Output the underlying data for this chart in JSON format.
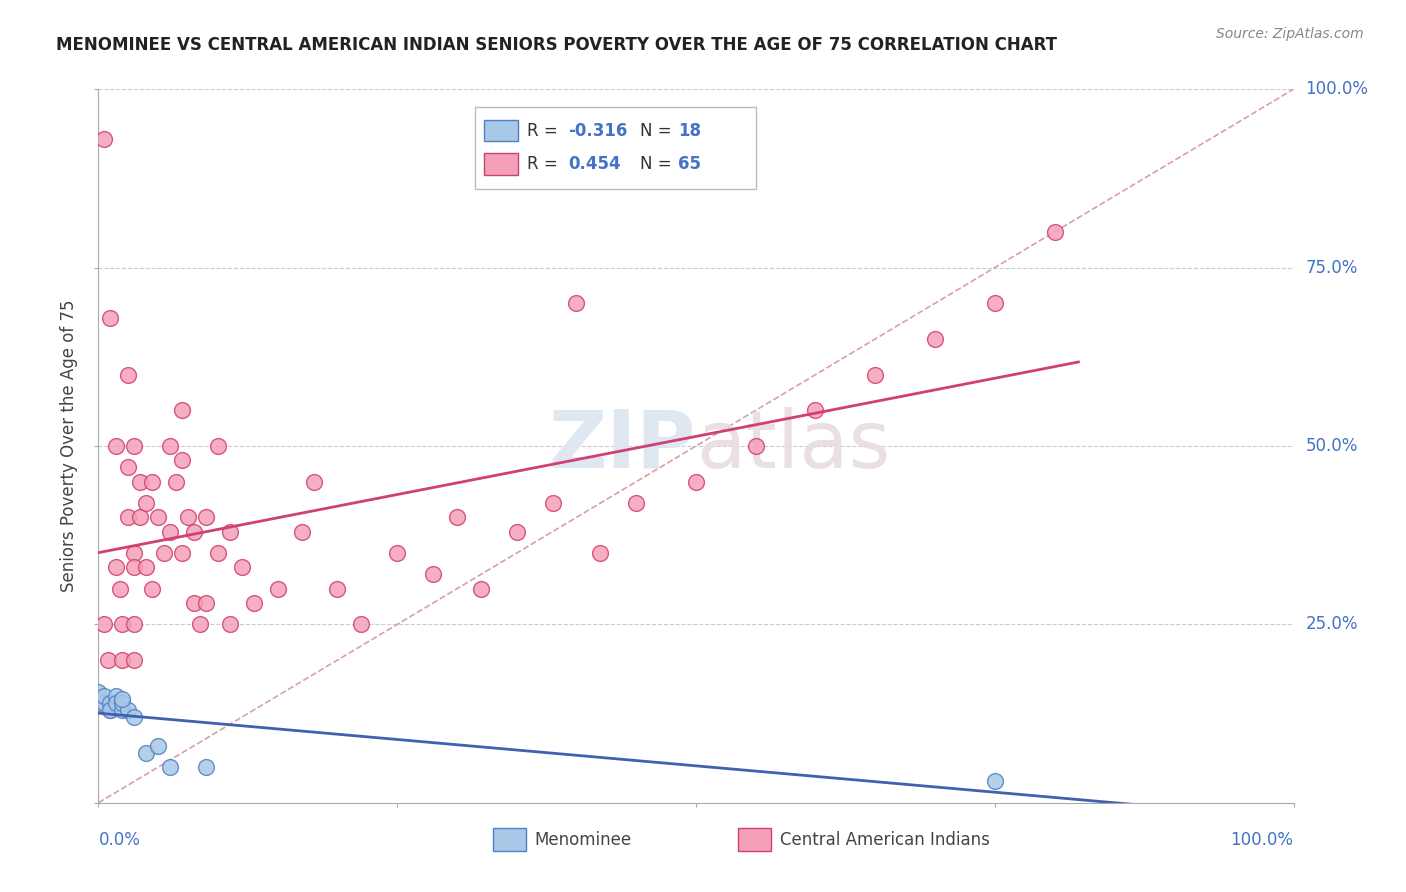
{
  "title": "MENOMINEE VS CENTRAL AMERICAN INDIAN SENIORS POVERTY OVER THE AGE OF 75 CORRELATION CHART",
  "source": "Source: ZipAtlas.com",
  "ylabel": "Seniors Poverty Over the Age of 75",
  "watermark_zip": "ZIP",
  "watermark_atlas": "atlas",
  "legend_blue_r": "R = -0.316",
  "legend_blue_n": "N = 18",
  "legend_pink_r": "R = 0.454",
  "legend_pink_n": "N = 65",
  "blue_color": "#a8c8e8",
  "pink_color": "#f4a0b8",
  "blue_edge_color": "#5080c0",
  "pink_edge_color": "#d04070",
  "blue_line_color": "#4060b0",
  "pink_line_color": "#d04070",
  "diagonal_color": "#d8a0a8",
  "grid_color": "#cccccc",
  "right_label_color": "#4472c4",
  "menominee_x": [
    0.0,
    0.0,
    0.005,
    0.005,
    0.01,
    0.01,
    0.015,
    0.015,
    0.02,
    0.02,
    0.025,
    0.03,
    0.04,
    0.05,
    0.06,
    0.09,
    0.75,
    0.02
  ],
  "menominee_y": [
    0.14,
    0.155,
    0.14,
    0.15,
    0.14,
    0.13,
    0.15,
    0.14,
    0.13,
    0.14,
    0.13,
    0.12,
    0.07,
    0.08,
    0.05,
    0.05,
    0.03,
    0.145
  ],
  "central_american_x": [
    0.005,
    0.005,
    0.008,
    0.01,
    0.015,
    0.015,
    0.018,
    0.02,
    0.02,
    0.025,
    0.025,
    0.025,
    0.03,
    0.03,
    0.03,
    0.03,
    0.03,
    0.035,
    0.035,
    0.04,
    0.04,
    0.045,
    0.045,
    0.05,
    0.055,
    0.06,
    0.06,
    0.065,
    0.07,
    0.07,
    0.07,
    0.075,
    0.08,
    0.08,
    0.085,
    0.09,
    0.09,
    0.1,
    0.1,
    0.11,
    0.11,
    0.12,
    0.13,
    0.15,
    0.17,
    0.18,
    0.2,
    0.22,
    0.25,
    0.28,
    0.3,
    0.32,
    0.35,
    0.38,
    0.4,
    0.42,
    0.45,
    0.5,
    0.55,
    0.6,
    0.65,
    0.7,
    0.75,
    0.8,
    0.01
  ],
  "central_american_y": [
    0.93,
    0.25,
    0.2,
    0.13,
    0.5,
    0.33,
    0.3,
    0.25,
    0.2,
    0.6,
    0.47,
    0.4,
    0.5,
    0.35,
    0.33,
    0.25,
    0.2,
    0.45,
    0.4,
    0.42,
    0.33,
    0.45,
    0.3,
    0.4,
    0.35,
    0.5,
    0.38,
    0.45,
    0.55,
    0.48,
    0.35,
    0.4,
    0.38,
    0.28,
    0.25,
    0.4,
    0.28,
    0.5,
    0.35,
    0.38,
    0.25,
    0.33,
    0.28,
    0.3,
    0.38,
    0.45,
    0.3,
    0.25,
    0.35,
    0.32,
    0.4,
    0.3,
    0.38,
    0.42,
    0.7,
    0.35,
    0.42,
    0.45,
    0.5,
    0.55,
    0.6,
    0.65,
    0.7,
    0.8,
    0.68
  ],
  "xlim": [
    0.0,
    1.0
  ],
  "ylim": [
    0.0,
    1.0
  ]
}
